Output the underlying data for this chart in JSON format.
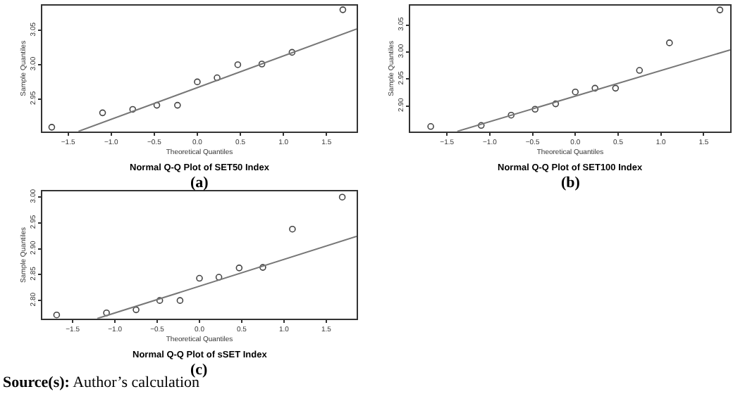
{
  "chart_data": [
    {
      "type": "scatter",
      "title": "Normal Q-Q Plot of SET50 Index",
      "subtitle": "(a)",
      "xlabel": "Theoretical Quantiles",
      "ylabel": "Sample Quantiles",
      "marker": "circle",
      "xlim": [
        -1.8,
        1.85
      ],
      "ylim": [
        2.903,
        3.086
      ],
      "xticks": [
        -1.5,
        {
          "value": -1,
          "label": "−1.0"
        },
        -0.5,
        {
          "value": 0,
          "label": "0.0"
        },
        0.5,
        {
          "value": 1,
          "label": "1.0"
        },
        1.5
      ],
      "yticks": [
        2.95,
        {
          "value": 3,
          "label": "3.00"
        },
        3.05
      ],
      "x": [
        -1.69,
        -1.1,
        -0.75,
        -0.47,
        -0.23,
        0,
        0.23,
        0.47,
        0.75,
        1.1,
        1.69
      ],
      "series": [
        {
          "color": "#444444",
          "values": [
            2.909,
            2.93,
            2.935,
            2.941,
            2.941,
            2.975,
            2.981,
            3.0,
            3.001,
            3.018,
            3.08
          ]
        },
        {
          "type": "line",
          "color": "#777777",
          "marker": "none",
          "x": [
            -1.38,
            1.85
          ],
          "values": [
            2.903,
            3.052
          ]
        }
      ]
    },
    {
      "type": "scatter",
      "title": "Normal Q-Q Plot of SET100 Index",
      "subtitle": "(b)",
      "xlabel": "Theoretical Quantiles",
      "ylabel": "Sample Quantiles",
      "marker": "circle",
      "xlim": [
        -1.93,
        1.81
      ],
      "ylim": [
        2.853,
        3.086
      ],
      "xticks": [
        -1.5,
        {
          "value": -1,
          "label": "−1.0"
        },
        -0.5,
        {
          "value": 0,
          "label": "0.0"
        },
        0.5,
        {
          "value": 1,
          "label": "1.0"
        },
        1.5
      ],
      "yticks": [
        {
          "value": 2.9,
          "label": "2.90"
        },
        2.95,
        {
          "value": 3,
          "label": "3.00"
        },
        3.05
      ],
      "x": [
        -1.69,
        -1.1,
        -0.75,
        -0.47,
        -0.23,
        0,
        0.23,
        0.47,
        0.75,
        1.1,
        1.69
      ],
      "series": [
        {
          "color": "#444444",
          "values": [
            2.862,
            2.864,
            2.883,
            2.894,
            2.904,
            2.926,
            2.933,
            2.933,
            2.966,
            3.017,
            3.078
          ]
        },
        {
          "type": "line",
          "color": "#777777",
          "marker": "none",
          "x": [
            -1.38,
            1.81
          ],
          "values": [
            2.853,
            3.004
          ]
        }
      ]
    },
    {
      "type": "scatter",
      "title": "Normal Q-Q Plot of sSET Index",
      "subtitle": "(c)",
      "xlabel": "Theoretical Quantiles",
      "ylabel": "Sample Quantiles",
      "marker": "circle",
      "xlim": [
        -1.86,
        1.86
      ],
      "ylim": [
        2.765,
        3.011
      ],
      "xticks": [
        -1.5,
        {
          "value": -1,
          "label": "−1.0"
        },
        -0.5,
        {
          "value": 0,
          "label": "0.0"
        },
        0.5,
        {
          "value": 1,
          "label": "1.0"
        },
        1.5
      ],
      "yticks": [
        {
          "value": 2.8,
          "label": "2.80"
        },
        2.85,
        {
          "value": 2.9,
          "label": "2.90"
        },
        2.95,
        {
          "value": 3,
          "label": "3.00"
        }
      ],
      "x": [
        -1.69,
        -1.1,
        -0.75,
        -0.47,
        -0.23,
        0,
        0.23,
        0.47,
        0.75,
        1.1,
        1.69
      ],
      "series": [
        {
          "color": "#444444",
          "values": [
            2.772,
            2.776,
            2.782,
            2.8,
            2.8,
            2.843,
            2.845,
            2.863,
            2.864,
            2.938,
            3.0
          ]
        },
        {
          "type": "line",
          "color": "#777777",
          "marker": "none",
          "x": [
            -1.21,
            1.86
          ],
          "values": [
            2.765,
            2.924
          ]
        }
      ],
      "annotations": [
        "Source(s): Author’s calculation"
      ]
    }
  ]
}
